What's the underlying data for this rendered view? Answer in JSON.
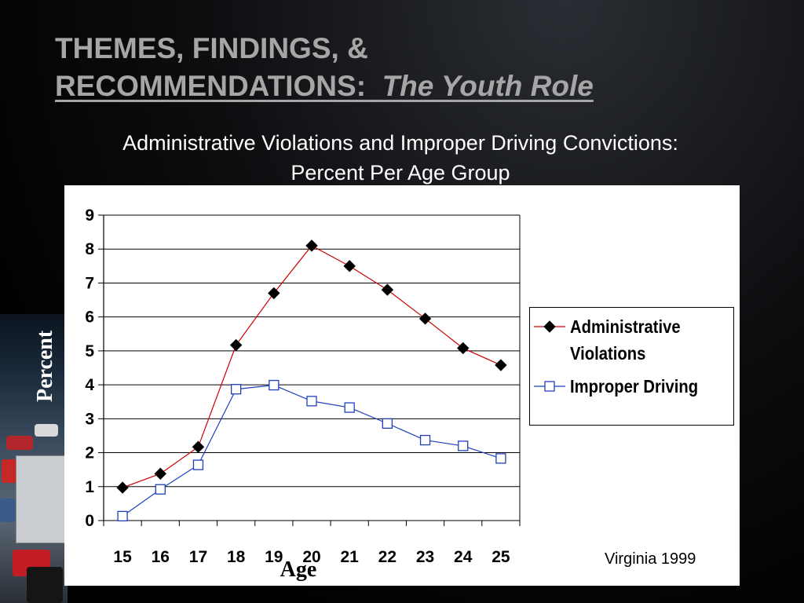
{
  "title": {
    "line1": "THEMES, FINDINGS, &",
    "line2_main": "RECOMMENDATIONS:",
    "line2_italic": "The Youth Role"
  },
  "subtitle": {
    "line1": "Administrative Violations and Improper Driving Convictions:",
    "line2": "Percent Per Age Group"
  },
  "source": "Virginia 1999",
  "colors": {
    "background": "#000000",
    "title": "#a6a6a6",
    "admin_series": "#cc0000",
    "improper_series": "#1f3fbf"
  },
  "chart_data": {
    "type": "line",
    "xlabel": "Age",
    "ylabel": "Percent",
    "categories": [
      "15",
      "16",
      "17",
      "18",
      "19",
      "20",
      "21",
      "22",
      "23",
      "24",
      "25"
    ],
    "ylim": [
      0,
      9
    ],
    "yticks": [
      "0",
      "1",
      "2",
      "3",
      "4",
      "5",
      "6",
      "7",
      "8",
      "9"
    ],
    "grid": true,
    "legend_position": "right",
    "series": [
      {
        "name": "Administrative Violations",
        "name_lines": [
          "Administrative",
          "Violations"
        ],
        "marker": "diamond",
        "values": [
          0.97,
          1.38,
          2.17,
          5.17,
          6.7,
          8.1,
          7.5,
          6.8,
          5.95,
          5.08,
          4.58
        ]
      },
      {
        "name": "Improper Driving",
        "name_lines": [
          "Improper Driving"
        ],
        "marker": "square",
        "values": [
          0.13,
          0.92,
          1.64,
          3.87,
          3.99,
          3.52,
          3.33,
          2.86,
          2.37,
          2.2,
          1.83
        ]
      }
    ]
  }
}
